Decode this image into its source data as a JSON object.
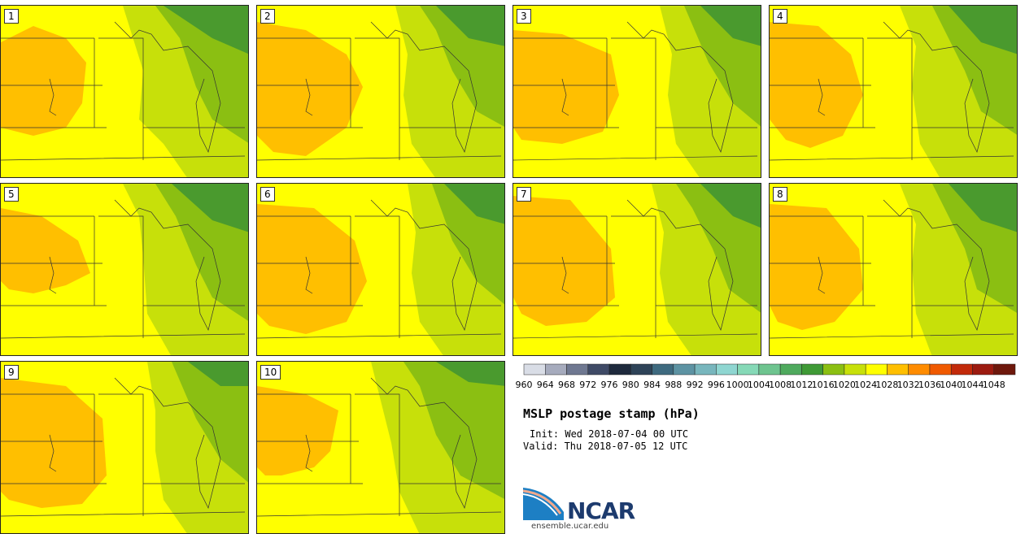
{
  "panels": [
    {
      "label": "1"
    },
    {
      "label": "2"
    },
    {
      "label": "3"
    },
    {
      "label": "4"
    },
    {
      "label": "5"
    },
    {
      "label": "6"
    },
    {
      "label": "7"
    },
    {
      "label": "8"
    },
    {
      "label": "9"
    },
    {
      "label": "10"
    }
  ],
  "colorbar": {
    "ticks": [
      "960",
      "964",
      "968",
      "972",
      "976",
      "980",
      "984",
      "988",
      "992",
      "996",
      "1000",
      "1004",
      "1008",
      "1012",
      "1016",
      "1020",
      "1024",
      "1028",
      "1032",
      "1036",
      "1040",
      "1044",
      "1048"
    ],
    "colors": [
      "#d9dde6",
      "#a6abbd",
      "#6f7891",
      "#3f4a66",
      "#1e2a3d",
      "#2e4358",
      "#3e6a7f",
      "#5d93a3",
      "#78b6bd",
      "#8fd6d1",
      "#86d9b7",
      "#6ec48f",
      "#4faa5e",
      "#3f9a36",
      "#8bbf12",
      "#c7e00a",
      "#ffff00",
      "#ffbf00",
      "#ff8c00",
      "#f05a00",
      "#c22a0a",
      "#9c1b10",
      "#6e180c"
    ]
  },
  "colors": {
    "high_1028": "#ffbf00",
    "band_1024": "#ffff00",
    "band_1020": "#c7e00a",
    "band_1016": "#8bbf12",
    "band_1012": "#4a9a2e"
  },
  "title": "MSLP postage stamp (hPa)",
  "init": "Init: Wed 2018-07-04 00 UTC",
  "valid": "Valid: Thu 2018-07-05 12 UTC",
  "logo": {
    "text": "NCAR",
    "url": "ensemble.ucar.edu"
  }
}
